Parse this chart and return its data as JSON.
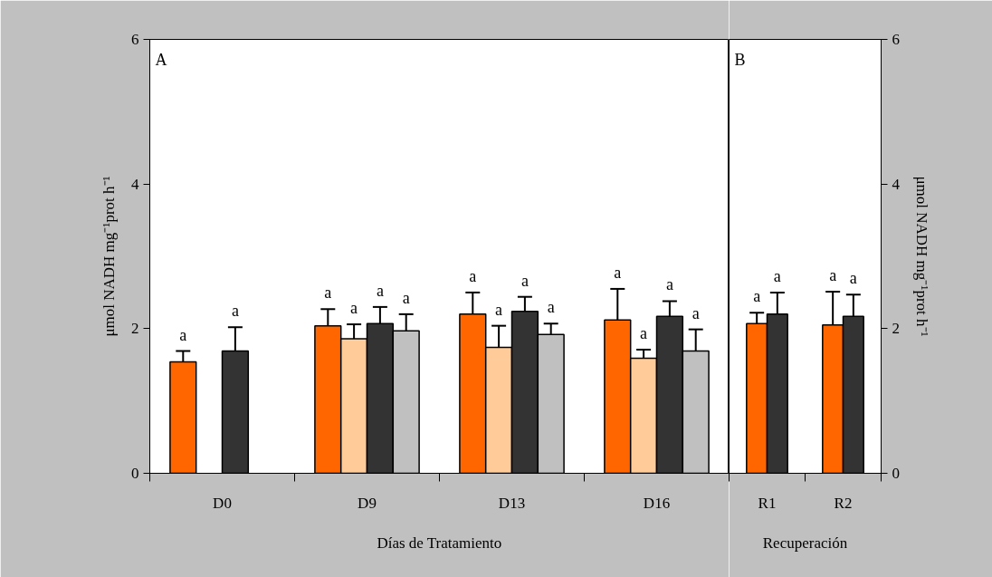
{
  "chart_data": [
    {
      "type": "bar",
      "categories": [
        "D0",
        "D9",
        "D13",
        "D16"
      ],
      "ylim": [
        0,
        6
      ],
      "yticks": [
        0,
        2,
        4,
        6
      ],
      "ylabel": "μmol NADH mg⁻¹prot h⁻¹",
      "xlabel": "Días de Tratamiento",
      "annotations": [
        "A"
      ],
      "series": [
        {
          "color": "#ff6600",
          "values": [
            1.54,
            2.04,
            2.2,
            2.12
          ],
          "errors": [
            0.15,
            0.23,
            0.3,
            0.43
          ],
          "value_labels": [
            "a",
            "a",
            "a",
            "a"
          ]
        },
        {
          "color": "#ffcc99",
          "values": [
            null,
            1.86,
            1.74,
            1.59
          ],
          "errors": [
            null,
            0.2,
            0.3,
            0.12
          ],
          "value_labels": [
            null,
            "a",
            "a",
            "a"
          ]
        },
        {
          "color": "#333333",
          "values": [
            1.69,
            2.07,
            2.24,
            2.17
          ],
          "errors": [
            0.33,
            0.23,
            0.2,
            0.21
          ],
          "value_labels": [
            "a",
            "a",
            "a",
            "a"
          ]
        },
        {
          "color": "#c0c0c0",
          "values": [
            null,
            1.97,
            1.92,
            1.69
          ],
          "errors": [
            null,
            0.23,
            0.15,
            0.3
          ],
          "value_labels": [
            null,
            "a",
            "a",
            "a"
          ]
        }
      ]
    },
    {
      "type": "bar",
      "categories": [
        "R1",
        "R2"
      ],
      "ylim": [
        0,
        6
      ],
      "yticks": [
        0,
        2,
        4,
        6
      ],
      "ylabel": "μmol NADH mg⁻¹prot h⁻¹",
      "xlabel": "Recuperación",
      "annotations": [
        "B"
      ],
      "series": [
        {
          "color": "#ff6600",
          "values": [
            2.07,
            2.05
          ],
          "errors": [
            0.15,
            0.46
          ],
          "value_labels": [
            "a",
            "a"
          ]
        },
        {
          "color": "#333333",
          "values": [
            2.2,
            2.17
          ],
          "errors": [
            0.3,
            0.3
          ],
          "value_labels": [
            "a",
            "a"
          ]
        }
      ]
    }
  ]
}
